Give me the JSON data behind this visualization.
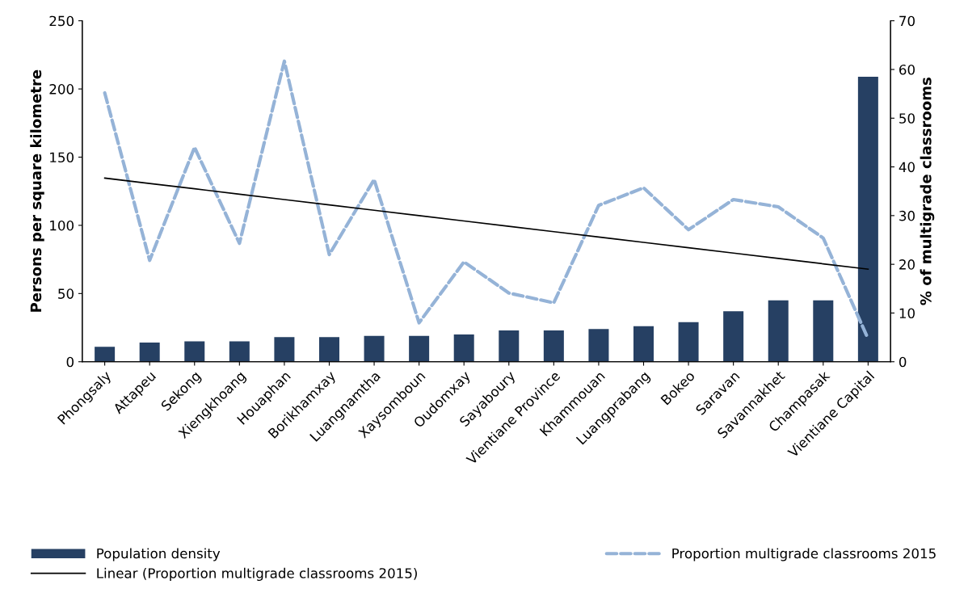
{
  "chart_data": {
    "type": "bar",
    "ylabel": "Persons per square kilometre",
    "y2label": "% of multigrade classrooms",
    "categories": [
      "Phongsaly",
      "Attapeu",
      "Sekong",
      "Xiengkhoang",
      "Houaphan",
      "Borikhamxay",
      "Luangnamtha",
      "Xaysomboun",
      "Oudomxay",
      "Sayaboury",
      "Vientiane Province",
      "Khammouan",
      "Luangprabang",
      "Bokeo",
      "Saravan",
      "Savannakhet",
      "Champasak",
      "Vientiane Capital"
    ],
    "series": [
      {
        "name": "Population density",
        "color": "#264063",
        "values": [
          11,
          14,
          15,
          15,
          18,
          18,
          19,
          19,
          20,
          23,
          23,
          24,
          26,
          29,
          37,
          45,
          45,
          209
        ]
      },
      {
        "name": "Proportion multigrade classrooms 2015",
        "type": "line",
        "axis": "y2",
        "color": "#95b3d7",
        "line_style": "dashed",
        "values": [
          55.2,
          20.8,
          44,
          24.3,
          61.7,
          22,
          37.4,
          8,
          20.5,
          14.1,
          12.1,
          32.1,
          35.7,
          27.1,
          33.3,
          31.8,
          25.4,
          4.7
        ]
      },
      {
        "name": "Linear (Proportion multigrade classrooms 2015)",
        "type": "line",
        "axis": "y2",
        "color": "#000000",
        "line_style": "solid",
        "values": [
          37.7,
          36.6,
          35.5,
          34.4,
          33.3,
          32.2,
          31.1,
          30.0,
          28.9,
          27.8,
          26.7,
          25.6,
          24.5,
          23.4,
          22.3,
          21.2,
          20.1,
          19.0
        ]
      }
    ],
    "ylim": [
      0,
      250
    ],
    "yticks": [
      0,
      50,
      100,
      150,
      200,
      250
    ],
    "y2lim": [
      0,
      70
    ],
    "y2ticks": [
      0,
      10,
      20,
      30,
      40,
      50,
      60,
      70
    ],
    "grid": false,
    "legend": "bottom",
    "marker": "none"
  }
}
